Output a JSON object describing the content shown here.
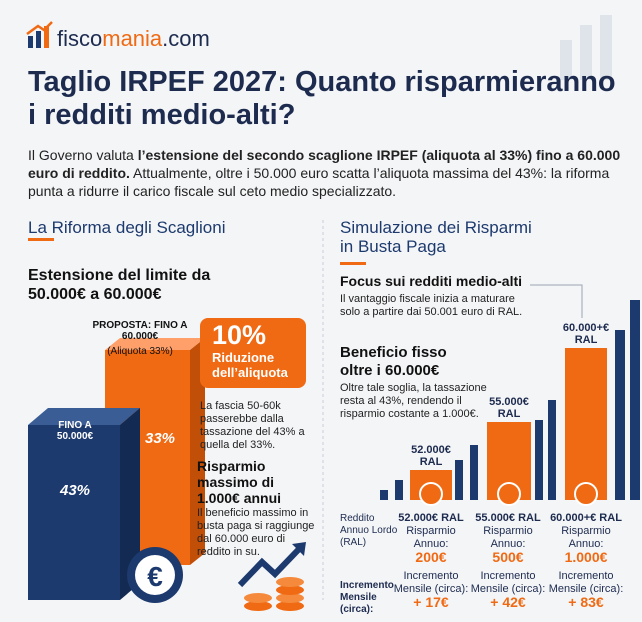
{
  "header": {
    "logo": [
      "fisco",
      "mania",
      ".com"
    ],
    "title": "Taglio IRPEF 2027: Quanto risparmieranno i redditi medio-alti?",
    "intro": [
      "Il Governo valuta ",
      "l’estensione del secondo scaglione IRPEF (aliquota al 33%) fino a 60.000 euro di reddito.",
      " Attualmente, oltre i 50.000 euro scatta l’aliquota massima del 43%: la riforma punta a ridurre il carico fiscale sul ceto medio specializzato."
    ]
  },
  "left": {
    "heading": "La Riforma degli Scaglioni",
    "subheading": "Estensione del limite da 50.000€ a 60.000€",
    "proposal": "PROPOSTA: FINO A 60.000€",
    "proposal_rate": "(Aliquota 33%)",
    "current": "FINO A 50.000€",
    "current_rate": "43%",
    "new_rate": "33%",
    "badge_value": "10%",
    "badge_text": "Riduzione dell’aliquota",
    "note": "La fascia 50-60k passerebbe dalla tassazione del 43% a quella del 33%.",
    "max_title": "Risparmio massimo di 1.000€ annui",
    "max_text": "Il beneficio massimo in busta paga si raggiunge dal 60.000 euro di reddito in su."
  },
  "right": {
    "heading": "Simulazione dei Risparmi in Busta Paga",
    "focus_title": "Focus sui redditi medio-alti",
    "focus_text": "Il vantaggio fiscale inizia a maturare solo a partire dai 50.001 euro di RAL.",
    "fixed_title": "Beneficio fisso oltre i 60.000€",
    "fixed_text": "Oltre tale soglia, la tassazione resta al 43%, rendendo il risparmio costante a 1.000€.",
    "bars": [
      "52.000€ RAL",
      "55.000€ RAL",
      "60.000+€ RAL"
    ],
    "table": {
      "row_labels": [
        "Reddito Annuo Lordo (RAL)",
        "Incremento Mensile (circa):"
      ],
      "columns": [
        {
          "ral": "52.000€ RAL",
          "saving_label": "Risparmio Annuo:",
          "saving": "200€",
          "monthly_label": "Incremento Mensile (circa):",
          "monthly": "+ 17€"
        },
        {
          "ral": "55.000€ RAL",
          "saving_label": "Risparmio Annuo:",
          "saving": "500€",
          "monthly_label": "Incremento Mensile (circa):",
          "monthly": "+ 42€"
        },
        {
          "ral": "60.000+€ RAL",
          "saving_label": "Risparmio Annuo:",
          "saving": "1.000€",
          "monthly_label": "Incremento Mensile (circa):",
          "monthly": "+ 83€"
        }
      ]
    }
  }
}
